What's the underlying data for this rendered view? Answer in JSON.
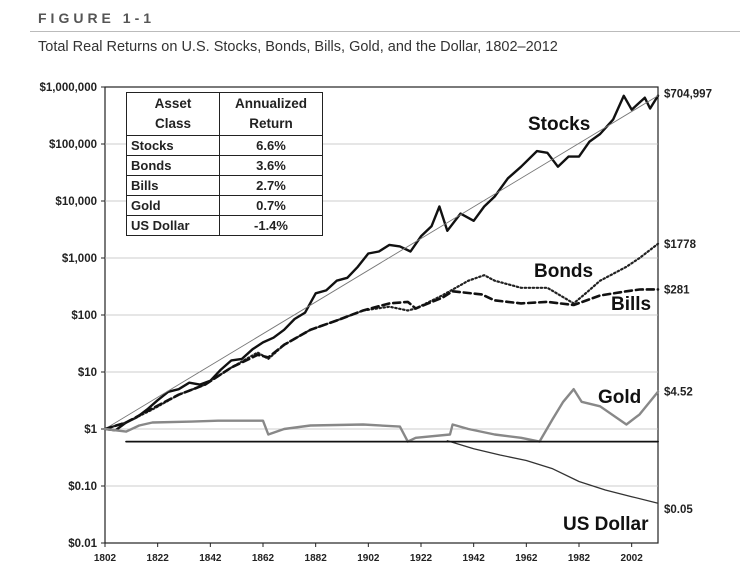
{
  "figure": {
    "label": "FIGURE 1-1",
    "title": "Total Real Returns on U.S. Stocks, Bonds, Bills, Gold, and the Dollar, 1802–2012"
  },
  "chart_data": {
    "type": "line",
    "title": "Total Real Returns on U.S. Stocks, Bonds, Bills, Gold, and the Dollar, 1802–2012",
    "xlabel": "",
    "ylabel": "",
    "y_scale": "log",
    "xlim": [
      1802,
      2012
    ],
    "ylim": [
      0.01,
      1000000
    ],
    "x_ticks": [
      "1802",
      "1822",
      "1842",
      "1862",
      "1882",
      "1902",
      "1922",
      "1942",
      "1962",
      "1982",
      "2002"
    ],
    "y_ticks": [
      {
        "value": 0.01,
        "label": "$0.01"
      },
      {
        "value": 0.1,
        "label": "$0.10"
      },
      {
        "value": 1,
        "label": "$1"
      },
      {
        "value": 10,
        "label": "$10"
      },
      {
        "value": 100,
        "label": "$100"
      },
      {
        "value": 1000,
        "label": "$1,000"
      },
      {
        "value": 10000,
        "label": "$10,000"
      },
      {
        "value": 100000,
        "label": "$100,000"
      },
      {
        "value": 1000000,
        "label": "$1,000,000"
      }
    ],
    "grid": true,
    "series": [
      {
        "name": "Stocks",
        "style": "solid-thick",
        "color": "#111111",
        "end_label": "$704,997",
        "points": [
          [
            1802,
            1
          ],
          [
            1806,
            0.95
          ],
          [
            1810,
            1.3
          ],
          [
            1814,
            1.6
          ],
          [
            1818,
            2.2
          ],
          [
            1822,
            3.2
          ],
          [
            1826,
            4.5
          ],
          [
            1830,
            5
          ],
          [
            1834,
            6.5
          ],
          [
            1838,
            6
          ],
          [
            1842,
            7
          ],
          [
            1846,
            11
          ],
          [
            1850,
            16
          ],
          [
            1854,
            17
          ],
          [
            1858,
            25
          ],
          [
            1862,
            33
          ],
          [
            1866,
            40
          ],
          [
            1870,
            55
          ],
          [
            1874,
            85
          ],
          [
            1878,
            110
          ],
          [
            1882,
            240
          ],
          [
            1886,
            270
          ],
          [
            1890,
            400
          ],
          [
            1894,
            450
          ],
          [
            1898,
            700
          ],
          [
            1902,
            1200
          ],
          [
            1906,
            1300
          ],
          [
            1910,
            1700
          ],
          [
            1914,
            1600
          ],
          [
            1918,
            1300
          ],
          [
            1922,
            2400
          ],
          [
            1926,
            3600
          ],
          [
            1929,
            8000
          ],
          [
            1932,
            3000
          ],
          [
            1937,
            6000
          ],
          [
            1942,
            4500
          ],
          [
            1946,
            8000
          ],
          [
            1950,
            12000
          ],
          [
            1955,
            25000
          ],
          [
            1960,
            40000
          ],
          [
            1966,
            75000
          ],
          [
            1970,
            70000
          ],
          [
            1974,
            40000
          ],
          [
            1978,
            60000
          ],
          [
            1982,
            60000
          ],
          [
            1986,
            110000
          ],
          [
            1990,
            150000
          ],
          [
            1995,
            270000
          ],
          [
            1999,
            700000
          ],
          [
            2002,
            400000
          ],
          [
            2007,
            650000
          ],
          [
            2009,
            420000
          ],
          [
            2012,
            704997
          ]
        ]
      },
      {
        "name": "Stocks trend",
        "style": "thin",
        "color": "#777777",
        "points": [
          [
            1802,
            1
          ],
          [
            2012,
            704997
          ]
        ]
      },
      {
        "name": "Bonds",
        "style": "dotted",
        "color": "#222222",
        "end_label": "$1778",
        "points": [
          [
            1802,
            1
          ],
          [
            1810,
            1.3
          ],
          [
            1820,
            2.2
          ],
          [
            1830,
            4
          ],
          [
            1840,
            6
          ],
          [
            1850,
            12
          ],
          [
            1860,
            22
          ],
          [
            1864,
            17
          ],
          [
            1870,
            30
          ],
          [
            1880,
            55
          ],
          [
            1890,
            80
          ],
          [
            1900,
            120
          ],
          [
            1910,
            140
          ],
          [
            1917,
            120
          ],
          [
            1920,
            130
          ],
          [
            1930,
            220
          ],
          [
            1940,
            400
          ],
          [
            1946,
            500
          ],
          [
            1950,
            400
          ],
          [
            1960,
            300
          ],
          [
            1970,
            300
          ],
          [
            1980,
            160
          ],
          [
            1985,
            250
          ],
          [
            1990,
            400
          ],
          [
            2000,
            700
          ],
          [
            2005,
            1000
          ],
          [
            2012,
            1778
          ]
        ]
      },
      {
        "name": "Bills",
        "style": "dashed",
        "color": "#111111",
        "end_label": "$281",
        "points": [
          [
            1802,
            1
          ],
          [
            1810,
            1.3
          ],
          [
            1820,
            2.3
          ],
          [
            1830,
            4
          ],
          [
            1840,
            6
          ],
          [
            1850,
            12
          ],
          [
            1860,
            20
          ],
          [
            1864,
            18
          ],
          [
            1870,
            30
          ],
          [
            1880,
            55
          ],
          [
            1890,
            80
          ],
          [
            1900,
            120
          ],
          [
            1910,
            160
          ],
          [
            1917,
            170
          ],
          [
            1920,
            130
          ],
          [
            1930,
            200
          ],
          [
            1934,
            260
          ],
          [
            1945,
            230
          ],
          [
            1950,
            180
          ],
          [
            1960,
            160
          ],
          [
            1970,
            170
          ],
          [
            1980,
            150
          ],
          [
            1990,
            220
          ],
          [
            2000,
            260
          ],
          [
            2005,
            280
          ],
          [
            2012,
            281
          ]
        ]
      },
      {
        "name": "Gold",
        "style": "solid-grey",
        "color": "#888888",
        "end_label": "$4.52",
        "points": [
          [
            1802,
            1
          ],
          [
            1810,
            0.9
          ],
          [
            1815,
            1.15
          ],
          [
            1820,
            1.3
          ],
          [
            1835,
            1.35
          ],
          [
            1845,
            1.4
          ],
          [
            1862,
            1.4
          ],
          [
            1864,
            0.8
          ],
          [
            1870,
            1
          ],
          [
            1880,
            1.15
          ],
          [
            1900,
            1.2
          ],
          [
            1914,
            1.1
          ],
          [
            1917,
            0.6
          ],
          [
            1920,
            0.7
          ],
          [
            1933,
            0.8
          ],
          [
            1934,
            1.2
          ],
          [
            1940,
            1
          ],
          [
            1950,
            0.8
          ],
          [
            1960,
            0.7
          ],
          [
            1967,
            0.6
          ],
          [
            1972,
            1.5
          ],
          [
            1976,
            3
          ],
          [
            1980,
            5
          ],
          [
            1983,
            3
          ],
          [
            1990,
            2.5
          ],
          [
            2000,
            1.2
          ],
          [
            2005,
            1.8
          ],
          [
            2012,
            4.52
          ]
        ]
      },
      {
        "name": "US Dollar",
        "style": "solid-thin",
        "color": "#333333",
        "end_label": "$0.05",
        "points": [
          [
            1932,
            0.62
          ],
          [
            1942,
            0.45
          ],
          [
            1952,
            0.35
          ],
          [
            1962,
            0.28
          ],
          [
            1972,
            0.2
          ],
          [
            1982,
            0.12
          ],
          [
            1992,
            0.085
          ],
          [
            2002,
            0.065
          ],
          [
            2012,
            0.05
          ]
        ]
      },
      {
        "name": "Baseline",
        "style": "solid-black",
        "color": "#111111",
        "points": [
          [
            1810,
            0.6
          ],
          [
            2012,
            0.6
          ]
        ]
      }
    ],
    "series_labels": [
      "Stocks",
      "Bonds",
      "Bills",
      "Gold",
      "US Dollar"
    ],
    "table": {
      "headers": [
        "Asset\nClass",
        "Annualized\nReturn"
      ],
      "rows": [
        [
          "Stocks",
          "6.6%"
        ],
        [
          "Bonds",
          "3.6%"
        ],
        [
          "Bills",
          "2.7%"
        ],
        [
          "Gold",
          "0.7%"
        ],
        [
          "US Dollar",
          "-1.4%"
        ]
      ]
    }
  }
}
